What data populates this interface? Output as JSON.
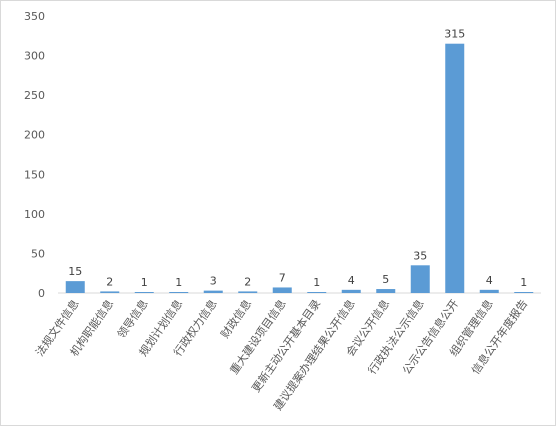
{
  "chart_data": {
    "type": "bar",
    "categories": [
      "法规文件信息",
      "机构职能信息",
      "领导信息",
      "规划计划信息",
      "行政权力信息",
      "财政信息",
      "重大建设项目信息",
      "更新主动公开基本目录",
      "建议提案办理结果公开信息",
      "会议公开信息",
      "行政执法公示信息",
      "公示公告信息公开",
      "组织管理信息",
      "信息公开年度报告"
    ],
    "values": [
      15,
      2,
      1,
      1,
      3,
      2,
      7,
      1,
      4,
      5,
      35,
      315,
      4,
      1
    ],
    "ylim": [
      0,
      350
    ],
    "yticks": [
      0,
      50,
      100,
      150,
      200,
      250,
      300,
      350
    ],
    "grid": false,
    "legend": "none",
    "bar_color": "#5b9bd5"
  }
}
